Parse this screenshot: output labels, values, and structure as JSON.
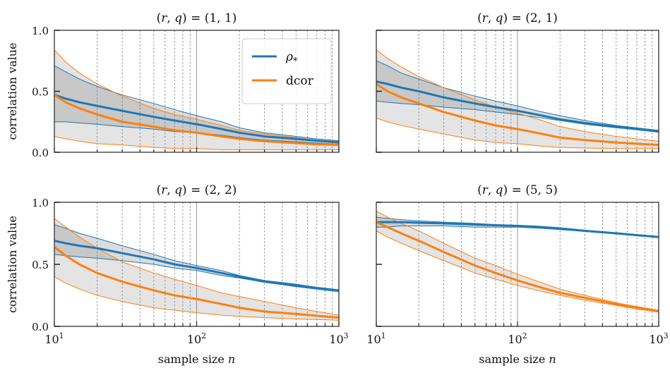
{
  "legend": {
    "placement": "upper-center of top-left panel",
    "entries": [
      {
        "label": "ρ*",
        "color": "#1f77b4"
      },
      {
        "label": "dcor",
        "color": "#ff7f0e"
      }
    ]
  },
  "chart_data": [
    {
      "type": "line",
      "title": "(r, q) = (1, 1)",
      "xlabel": "",
      "ylabel": "correlation value",
      "xscale": "log",
      "xlim": [
        10,
        1000
      ],
      "ylim": [
        0,
        1
      ],
      "y_ticks": [
        "0.0",
        "0.5",
        "1.0"
      ],
      "x_ticks": [],
      "grid": "dashed vertical lines at minor decades, solid at 10^2",
      "x": [
        10,
        12,
        15,
        20,
        30,
        50,
        70,
        100,
        150,
        200,
        300,
        500,
        700,
        1000
      ],
      "series": [
        {
          "name": "ρ*",
          "color": "#1f77b4",
          "values": [
            0.47,
            0.44,
            0.41,
            0.38,
            0.34,
            0.29,
            0.26,
            0.23,
            0.19,
            0.16,
            0.13,
            0.11,
            0.095,
            0.08
          ],
          "lower": [
            0.25,
            0.25,
            0.24,
            0.23,
            0.21,
            0.19,
            0.17,
            0.16,
            0.14,
            0.12,
            0.1,
            0.085,
            0.075,
            0.065
          ],
          "upper": [
            0.71,
            0.66,
            0.6,
            0.54,
            0.47,
            0.4,
            0.35,
            0.3,
            0.25,
            0.2,
            0.16,
            0.13,
            0.11,
            0.095
          ]
        },
        {
          "name": "dcor",
          "color": "#ff7f0e",
          "values": [
            0.47,
            0.41,
            0.36,
            0.31,
            0.25,
            0.21,
            0.18,
            0.16,
            0.13,
            0.11,
            0.09,
            0.075,
            0.065,
            0.06
          ],
          "lower": [
            0.13,
            0.11,
            0.09,
            0.07,
            0.06,
            0.04,
            0.03,
            0.03,
            0.02,
            0.02,
            0.02,
            0.02,
            0.02,
            0.02
          ],
          "upper": [
            0.84,
            0.74,
            0.65,
            0.56,
            0.46,
            0.36,
            0.31,
            0.27,
            0.22,
            0.18,
            0.15,
            0.12,
            0.1,
            0.09
          ]
        }
      ]
    },
    {
      "type": "line",
      "title": "(r, q) = (2, 1)",
      "xlabel": "",
      "ylabel": "",
      "xscale": "log",
      "xlim": [
        10,
        1000
      ],
      "ylim": [
        0,
        1
      ],
      "y_ticks": [],
      "x_ticks": [],
      "grid": "dashed vertical lines at minor decades, solid at 10^2",
      "x": [
        10,
        12,
        15,
        20,
        30,
        50,
        70,
        100,
        150,
        200,
        300,
        500,
        700,
        1000
      ],
      "series": [
        {
          "name": "ρ*",
          "color": "#1f77b4",
          "values": [
            0.58,
            0.56,
            0.53,
            0.5,
            0.45,
            0.4,
            0.37,
            0.34,
            0.3,
            0.27,
            0.24,
            0.21,
            0.19,
            0.17
          ],
          "lower": [
            0.42,
            0.41,
            0.4,
            0.39,
            0.37,
            0.35,
            0.33,
            0.31,
            0.28,
            0.26,
            0.23,
            0.2,
            0.185,
            0.165
          ],
          "upper": [
            0.75,
            0.71,
            0.65,
            0.6,
            0.53,
            0.46,
            0.42,
            0.38,
            0.33,
            0.3,
            0.26,
            0.22,
            0.2,
            0.18
          ]
        },
        {
          "name": "dcor",
          "color": "#ff7f0e",
          "values": [
            0.56,
            0.5,
            0.45,
            0.4,
            0.33,
            0.26,
            0.22,
            0.19,
            0.15,
            0.12,
            0.1,
            0.08,
            0.07,
            0.06
          ],
          "lower": [
            0.28,
            0.25,
            0.22,
            0.19,
            0.15,
            0.1,
            0.08,
            0.07,
            0.05,
            0.04,
            0.035,
            0.03,
            0.03,
            0.03
          ],
          "upper": [
            0.84,
            0.77,
            0.7,
            0.62,
            0.53,
            0.43,
            0.37,
            0.32,
            0.26,
            0.21,
            0.17,
            0.13,
            0.11,
            0.09
          ]
        }
      ]
    },
    {
      "type": "line",
      "title": "(r, q) = (2, 2)",
      "xlabel": "sample size n",
      "ylabel": "correlation value",
      "xscale": "log",
      "xlim": [
        10,
        1000
      ],
      "ylim": [
        0,
        1
      ],
      "y_ticks": [
        "0.0",
        "0.5",
        "1.0"
      ],
      "x_ticks": [
        "10^1",
        "10^2",
        "10^3"
      ],
      "grid": "dashed vertical lines at minor decades, solid at 10^2",
      "x": [
        10,
        12,
        15,
        20,
        30,
        50,
        70,
        100,
        150,
        200,
        300,
        500,
        700,
        1000
      ],
      "series": [
        {
          "name": "ρ*",
          "color": "#1f77b4",
          "values": [
            0.69,
            0.67,
            0.65,
            0.63,
            0.59,
            0.54,
            0.5,
            0.47,
            0.43,
            0.4,
            0.36,
            0.33,
            0.31,
            0.29
          ],
          "lower": [
            0.58,
            0.57,
            0.56,
            0.55,
            0.53,
            0.5,
            0.47,
            0.45,
            0.41,
            0.39,
            0.355,
            0.32,
            0.3,
            0.28
          ],
          "upper": [
            0.82,
            0.79,
            0.75,
            0.71,
            0.65,
            0.58,
            0.53,
            0.49,
            0.45,
            0.41,
            0.37,
            0.34,
            0.315,
            0.29
          ]
        },
        {
          "name": "dcor",
          "color": "#ff7f0e",
          "values": [
            0.64,
            0.57,
            0.5,
            0.43,
            0.36,
            0.29,
            0.25,
            0.22,
            0.18,
            0.15,
            0.12,
            0.1,
            0.085,
            0.07
          ],
          "lower": [
            0.4,
            0.35,
            0.3,
            0.25,
            0.2,
            0.15,
            0.13,
            0.11,
            0.09,
            0.08,
            0.07,
            0.06,
            0.055,
            0.05
          ],
          "upper": [
            0.87,
            0.8,
            0.72,
            0.63,
            0.52,
            0.43,
            0.38,
            0.33,
            0.27,
            0.24,
            0.2,
            0.15,
            0.12,
            0.09
          ]
        }
      ]
    },
    {
      "type": "line",
      "title": "(r, q) = (5, 5)",
      "xlabel": "sample size n",
      "ylabel": "",
      "xscale": "log",
      "xlim": [
        10,
        1000
      ],
      "ylim": [
        0,
        1
      ],
      "y_ticks": [],
      "x_ticks": [
        "10^1",
        "10^2",
        "10^3"
      ],
      "grid": "dashed vertical lines at minor decades, solid at 10^2",
      "x": [
        10,
        12,
        15,
        20,
        30,
        50,
        70,
        100,
        150,
        200,
        300,
        500,
        700,
        1000
      ],
      "series": [
        {
          "name": "ρ*",
          "color": "#1f77b4",
          "values": [
            0.84,
            0.84,
            0.84,
            0.835,
            0.83,
            0.82,
            0.815,
            0.81,
            0.8,
            0.79,
            0.77,
            0.75,
            0.735,
            0.72
          ],
          "lower": [
            0.8,
            0.8,
            0.81,
            0.81,
            0.81,
            0.8,
            0.8,
            0.8,
            0.79,
            0.78,
            0.765,
            0.745,
            0.73,
            0.715
          ],
          "upper": [
            0.88,
            0.87,
            0.86,
            0.85,
            0.84,
            0.83,
            0.82,
            0.815,
            0.805,
            0.795,
            0.775,
            0.755,
            0.74,
            0.725
          ]
        },
        {
          "name": "dcor",
          "color": "#ff7f0e",
          "values": [
            0.84,
            0.8,
            0.75,
            0.69,
            0.6,
            0.49,
            0.43,
            0.37,
            0.31,
            0.27,
            0.23,
            0.18,
            0.15,
            0.12
          ],
          "lower": [
            0.77,
            0.72,
            0.67,
            0.61,
            0.53,
            0.43,
            0.38,
            0.33,
            0.28,
            0.25,
            0.21,
            0.17,
            0.14,
            0.115
          ],
          "upper": [
            0.93,
            0.88,
            0.83,
            0.77,
            0.67,
            0.55,
            0.49,
            0.42,
            0.35,
            0.3,
            0.25,
            0.19,
            0.16,
            0.13
          ]
        }
      ]
    }
  ]
}
